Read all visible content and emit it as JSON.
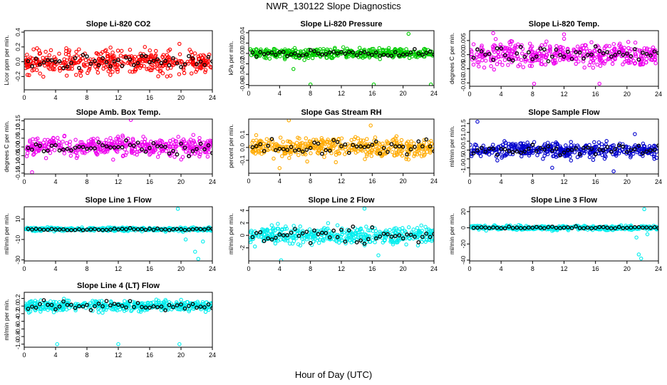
{
  "title": "NWR_130122  Slope Diagnostics",
  "xlabel": "Hour of Day (UTC)",
  "colors": {
    "frame": "#000000",
    "overlay_points": "#000000"
  },
  "chart_data": [
    {
      "type": "scatter",
      "title": "Slope Li-820 CO2",
      "ylabel": "Licor ppm per min.",
      "color": "#ff0000",
      "xlim": [
        0,
        24
      ],
      "ylim": [
        -0.38,
        0.42
      ],
      "xticks": [
        0,
        4,
        8,
        12,
        16,
        20,
        24
      ],
      "yticks": [
        -0.2,
        0,
        0.2,
        0.4
      ],
      "ytick_labels": [
        "-0.2",
        "0.0",
        "0.2",
        "0.4"
      ],
      "spread": 0.14,
      "overlay_spread": 0.09,
      "outliers": []
    },
    {
      "type": "scatter",
      "title": "Slope Li-820 Pressure",
      "ylabel": "kPa per min.",
      "color": "#00cc00",
      "xlim": [
        0,
        24
      ],
      "ylim": [
        -0.062,
        0.044
      ],
      "xticks": [
        0,
        4,
        8,
        12,
        16,
        20,
        24
      ],
      "yticks": [
        -0.06,
        -0.04,
        -0.02,
        0,
        0.02,
        0.04
      ],
      "ytick_labels": [
        "-0.06",
        "-0.04",
        "-0.02",
        "0.00",
        "0.02",
        "0.04"
      ],
      "spread": 0.008,
      "overlay_spread": 0.006,
      "outliers": [
        [
          8,
          -0.06
        ],
        [
          16.2,
          -0.06
        ],
        [
          23.6,
          -0.06
        ],
        [
          20.7,
          0.038
        ],
        [
          5.8,
          -0.03
        ]
      ]
    },
    {
      "type": "scatter",
      "title": "Slope Li-820 Temp.",
      "ylabel": "degrees C per min.",
      "color": "#ee00ee",
      "xlim": [
        0,
        24
      ],
      "ylim": [
        -0.0112,
        0.0085
      ],
      "xticks": [
        0,
        4,
        8,
        12,
        16,
        20,
        24
      ],
      "yticks": [
        -0.01,
        -0.005,
        0,
        0.005
      ],
      "ytick_labels": [
        "-0.010",
        "-0.005",
        "0.000",
        "0.005"
      ],
      "spread": 0.0035,
      "overlay_spread": 0.0025,
      "outliers": [
        [
          16.5,
          -0.0103
        ],
        [
          8.2,
          -0.0103
        ],
        [
          3,
          0.0076
        ],
        [
          12,
          0.0072
        ]
      ]
    },
    {
      "type": "scatter",
      "title": "Slope Amb. Box Temp.",
      "ylabel": "degrees C per min.",
      "color": "#ee00ee",
      "xlim": [
        0,
        24
      ],
      "ylim": [
        -0.155,
        0.16
      ],
      "xticks": [
        0,
        4,
        8,
        12,
        16,
        20,
        24
      ],
      "yticks": [
        -0.15,
        -0.1,
        -0.05,
        0,
        0.05,
        0.1,
        0.15
      ],
      "ytick_labels": [
        "-0.15",
        "-0.10",
        "-0.05",
        "0.00",
        "0.05",
        "0.10",
        "0.15"
      ],
      "spread": 0.045,
      "overlay_spread": 0.03,
      "outliers": [
        [
          13.6,
          0.155
        ],
        [
          1,
          -0.145
        ]
      ]
    },
    {
      "type": "scatter",
      "title": "Slope Gas Stream RH",
      "ylabel": "percent per min.",
      "color": "#ffaa00",
      "xlim": [
        0,
        24
      ],
      "ylim": [
        -0.2,
        0.22
      ],
      "xticks": [
        0,
        4,
        8,
        12,
        16,
        20,
        24
      ],
      "yticks": [
        -0.1,
        0,
        0.1
      ],
      "ytick_labels": [
        "-0.1",
        "0.0",
        "0.1"
      ],
      "spread": 0.065,
      "overlay_spread": 0.05,
      "outliers": [
        [
          5.2,
          0.21
        ],
        [
          4,
          -0.16
        ],
        [
          15.8,
          0.17
        ]
      ]
    },
    {
      "type": "scatter",
      "title": "Slope Sample Flow",
      "ylabel": "ml/min per min.",
      "color": "#0000cc",
      "xlim": [
        0,
        24
      ],
      "ylim": [
        -1.35,
        1.75
      ],
      "xticks": [
        0,
        4,
        8,
        12,
        16,
        20,
        24
      ],
      "yticks": [
        -1.0,
        -0.5,
        0,
        0.5,
        1.0,
        1.5
      ],
      "ytick_labels": [
        "-1.0",
        "-0.5",
        "0.0",
        "0.5",
        "1.0",
        "1.5"
      ],
      "spread": 0.35,
      "overlay_spread": 0.25,
      "outliers": [
        [
          1,
          1.6
        ],
        [
          10.5,
          -1.0
        ],
        [
          18.3,
          -1.2
        ],
        [
          21,
          0.9
        ]
      ]
    },
    {
      "type": "scatter",
      "title": "Slope Line 1 Flow",
      "ylabel": "ml/min per min.",
      "color": "#00eeee",
      "xlim": [
        0,
        24
      ],
      "ylim": [
        -31,
        22
      ],
      "xticks": [
        0,
        4,
        8,
        12,
        16,
        20,
        24
      ],
      "yticks": [
        -30,
        -10,
        10
      ],
      "ytick_labels": [
        "-30",
        "-10",
        "10"
      ],
      "spread": 1.5,
      "overlay_spread": 0.8,
      "outliers": [
        [
          19.6,
          20
        ],
        [
          22.2,
          -29
        ],
        [
          21.8,
          -22
        ],
        [
          20.6,
          -10
        ],
        [
          22.8,
          -12
        ]
      ]
    },
    {
      "type": "scatter",
      "title": "Slope Line 2 Flow",
      "ylabel": "ml/min per min.",
      "color": "#00eeee",
      "xlim": [
        0,
        24
      ],
      "ylim": [
        -4.1,
        4.6
      ],
      "xticks": [
        0,
        4,
        8,
        12,
        16,
        20,
        24
      ],
      "yticks": [
        -2,
        0,
        2,
        4
      ],
      "ytick_labels": [
        "-2",
        "0",
        "2",
        "4"
      ],
      "spread": 1.2,
      "overlay_spread": 1.0,
      "outliers": [
        [
          4.2,
          -4
        ],
        [
          15,
          4.3
        ],
        [
          16.8,
          -3.2
        ]
      ]
    },
    {
      "type": "scatter",
      "title": "Slope Line 3 Flow",
      "ylabel": "ml/min per min.",
      "color": "#00eeee",
      "xlim": [
        0,
        24
      ],
      "ylim": [
        -41,
        26
      ],
      "xticks": [
        0,
        4,
        8,
        12,
        16,
        20,
        24
      ],
      "yticks": [
        -40,
        -20,
        0,
        20
      ],
      "ytick_labels": [
        "-40",
        "-20",
        "0",
        "20"
      ],
      "spread": 2.2,
      "overlay_spread": 1.2,
      "outliers": [
        [
          21.5,
          -33
        ],
        [
          21.8,
          -38
        ],
        [
          22.2,
          23
        ],
        [
          21.2,
          -12
        ],
        [
          22.6,
          -8
        ]
      ]
    },
    {
      "type": "scatter",
      "title": "Slope Line 4 (LT) Flow",
      "ylabel": "ml/min per min.",
      "color": "#00eeee",
      "xlim": [
        0,
        24
      ],
      "ylim": [
        -1.08,
        0.36
      ],
      "xticks": [
        0,
        4,
        8,
        12,
        16,
        20,
        24
      ],
      "yticks": [
        -1.0,
        -0.8,
        -0.6,
        -0.4,
        -0.2,
        0,
        0.2
      ],
      "ytick_labels": [
        "-1.0",
        "-0.8",
        "-0.6",
        "-0.4",
        "-0.2",
        "0.0",
        "0.2"
      ],
      "spread": 0.12,
      "overlay_spread": 0.09,
      "outliers": [
        [
          4.2,
          -1.0
        ],
        [
          12,
          -1.0
        ],
        [
          19.8,
          -1.0
        ]
      ]
    }
  ]
}
